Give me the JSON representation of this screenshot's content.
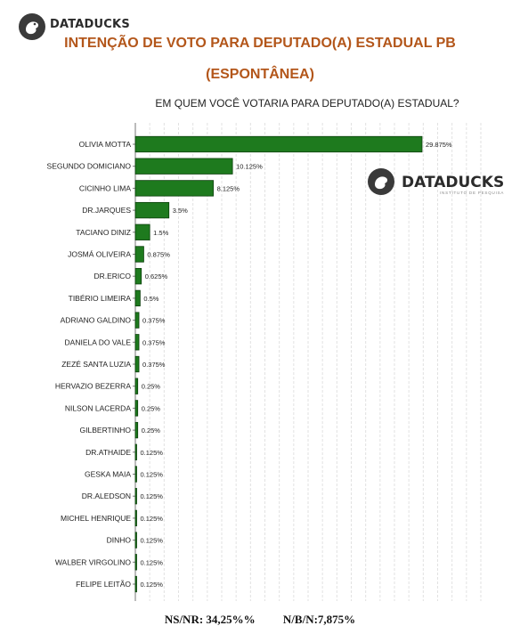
{
  "header": {
    "brand": "DATADUCKS",
    "title_line1": "INTENÇÃO DE VOTO PARA DEPUTADO(A) ESTADUAL PB",
    "title_line2": "(ESPONTÂNEA)"
  },
  "watermark": {
    "brand": "DATADUCKS",
    "tagline": "INSTITUTO DE PESQUISA"
  },
  "colors": {
    "title": "#b3561a",
    "bar_fill": "#1e7a1e",
    "bar_stroke": "#0b3f0b"
  },
  "chart_data": {
    "type": "bar",
    "orientation": "horizontal",
    "title": "EM QUEM VOCÊ VOTARIA PARA DEPUTADO(A) ESTADUAL?",
    "categories": [
      "OLIVIA MOTTA",
      "SEGUNDO DOMICIANO",
      "CICINHO LIMA",
      "DR.JARQUES",
      "TACIANO DINIZ",
      "JOSMÁ OLIVEIRA",
      "DR.ERICO",
      "TIBÉRIO LIMEIRA",
      "ADRIANO GALDINO",
      "DANIELA DO VALE",
      "ZEZÉ SANTA LUZIA",
      "HERVAZIO BEZERRA",
      "NILSON LACERDA",
      "GILBERTINHO",
      "DR.ATHAIDE",
      "GESKA MAIA",
      "DR.ALEDSON",
      "MICHEL HENRIQUE",
      "DINHO",
      "WALBER VIRGOLINO",
      "FELIPE LEITÃO"
    ],
    "values": [
      29.875,
      10.125,
      8.125,
      3.5,
      1.5,
      0.875,
      0.625,
      0.5,
      0.375,
      0.375,
      0.375,
      0.25,
      0.25,
      0.25,
      0.125,
      0.125,
      0.125,
      0.125,
      0.125,
      0.125,
      0.125
    ],
    "value_labels": [
      "29.875%",
      "10.125%",
      "8.125%",
      "3.5%",
      "1.5%",
      "0.875%",
      "0.625%",
      "0.5%",
      "0.375%",
      "0.375%",
      "0.375%",
      "0.25%",
      "0.25%",
      "0.25%",
      "0.125%",
      "0.125%",
      "0.125%",
      "0.125%",
      "0.125%",
      "0.125%",
      "0.125%"
    ],
    "xlim": [
      0,
      36
    ],
    "grid": true,
    "legend": "none"
  },
  "footer": {
    "nsnr": "NS/NR: 34,25%%",
    "nbn": "N/B/N:7,875%"
  }
}
